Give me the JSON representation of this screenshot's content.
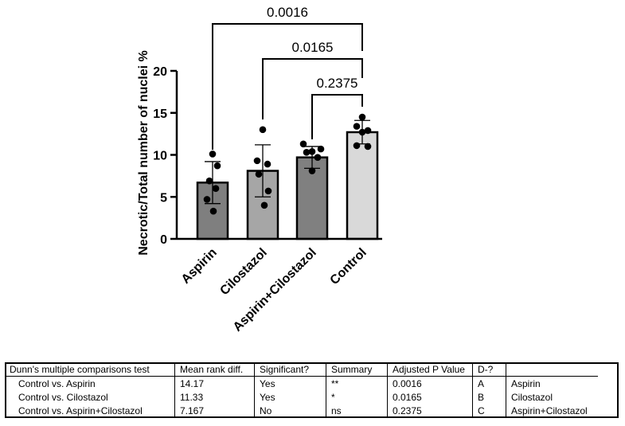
{
  "chart_data": {
    "type": "bar",
    "ylabel": "Necrotic/Total number of nuclei %",
    "xlabel": "",
    "ylim": [
      0,
      20
    ],
    "yticks": [
      0,
      5,
      10,
      15,
      20
    ],
    "categories": [
      "Aspirin",
      "Cilostazol",
      "Aspirin+Cilostazol",
      "Control"
    ],
    "values": [
      6.7,
      8.1,
      9.7,
      12.7
    ],
    "sd": [
      2.5,
      3.1,
      1.3,
      1.4
    ],
    "bar_colors": [
      "#7f7f7f",
      "#a6a6a6",
      "#808080",
      "#d9d9d9"
    ],
    "points": [
      [
        10.1,
        8.7,
        6.9,
        6.0,
        4.7,
        3.3
      ],
      [
        13.0,
        9.3,
        8.9,
        7.7,
        5.7,
        4.0
      ],
      [
        11.3,
        10.7,
        10.4,
        10.3,
        9.7,
        8.1
      ],
      [
        14.5,
        13.4,
        12.9,
        12.7,
        11.1,
        11.0
      ]
    ],
    "comparisons": [
      {
        "from": "Aspirin",
        "to": "Control",
        "label": "0.0016"
      },
      {
        "from": "Cilostazol",
        "to": "Control",
        "label": "0.0165"
      },
      {
        "from": "Aspirin+Cilostazol",
        "to": "Control",
        "label": "0.2375"
      }
    ]
  },
  "stats_table": {
    "headers": [
      "Dunn's multiple comparisons test",
      "Mean rank diff.",
      "Significant?",
      "Summary",
      "Adjusted P Value",
      "D-?",
      ""
    ],
    "rows": [
      [
        "Control vs. Aspirin",
        "14.17",
        "Yes",
        "**",
        "0.0016",
        "A",
        "Aspirin"
      ],
      [
        "Control vs. Cilostazol",
        "11.33",
        "Yes",
        "*",
        "0.0165",
        "B",
        "Cilostazol"
      ],
      [
        "Control vs. Aspirin+Cilostazol",
        "7.167",
        "No",
        "ns",
        "0.2375",
        "C",
        "Aspirin+Cilostazol"
      ]
    ]
  }
}
